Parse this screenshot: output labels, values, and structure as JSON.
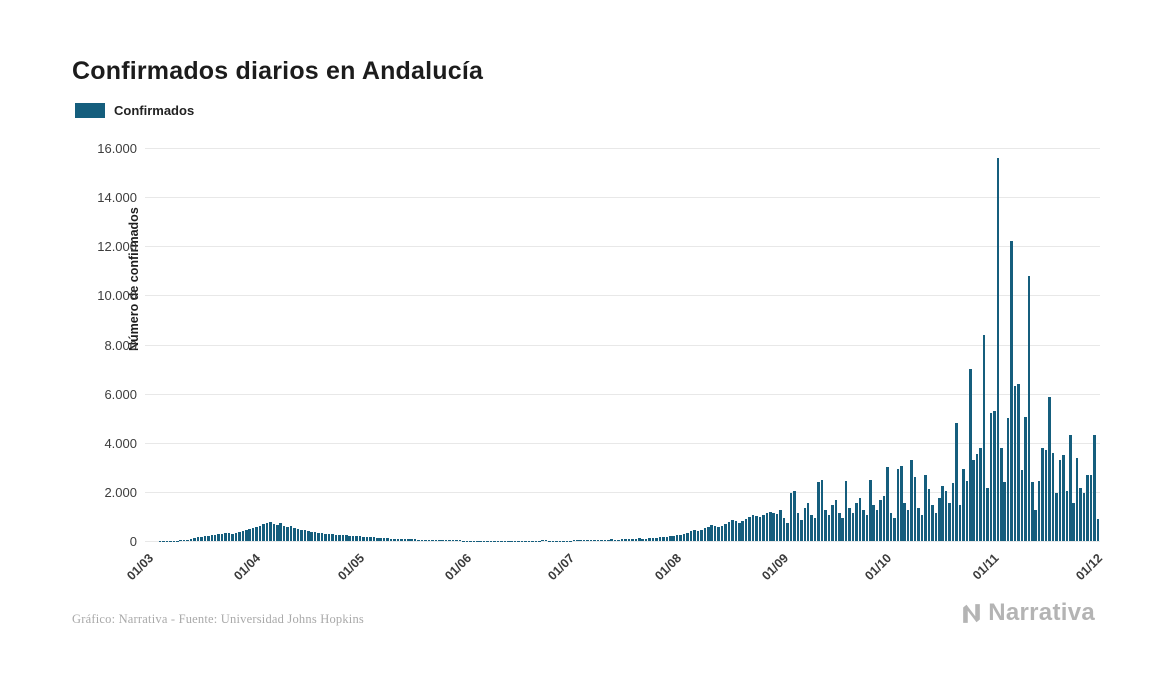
{
  "page": {
    "title": "Confirmados diarios en Andalucía",
    "footer_credit": "Gráfico: Narrativa - Fuente: Universidad Johns Hopkins",
    "brand": "Narrativa"
  },
  "legend": {
    "label": "Confirmados",
    "color": "#155E7D"
  },
  "chart_data": {
    "type": "bar",
    "title": "Confirmados diarios en Andalucía",
    "xlabel": "",
    "ylabel": "Número de confirmados",
    "ylim": [
      0,
      16000
    ],
    "grid": true,
    "legend_position": "top-left",
    "bar_color": "#155E7D",
    "y_tick_values": [
      0,
      2000,
      4000,
      6000,
      8000,
      10000,
      12000,
      14000,
      16000
    ],
    "y_tick_labels": [
      "0",
      "2.000",
      "4.000",
      "6.000",
      "8.000",
      "10.000",
      "12.000",
      "14.000",
      "16.000"
    ],
    "x_tick_labels": [
      "01/03",
      "01/04",
      "01/05",
      "01/06",
      "01/07",
      "01/08",
      "01/09",
      "01/10",
      "01/11",
      "01/12"
    ],
    "x_tick_indices": [
      0,
      31,
      61,
      92,
      122,
      153,
      184,
      214,
      245,
      275
    ],
    "frequency": "daily",
    "start_label": "01/03",
    "series": [
      {
        "name": "Confirmados",
        "values": [
          0,
          0,
          0,
          0,
          2,
          4,
          6,
          8,
          12,
          18,
          25,
          40,
          60,
          90,
          120,
          150,
          170,
          190,
          210,
          230,
          250,
          270,
          290,
          310,
          330,
          300,
          340,
          380,
          420,
          460,
          500,
          520,
          560,
          620,
          680,
          740,
          780,
          700,
          650,
          720,
          600,
          560,
          620,
          540,
          500,
          460,
          430,
          400,
          380,
          360,
          340,
          310,
          290,
          300,
          280,
          260,
          250,
          240,
          230,
          220,
          210,
          200,
          190,
          180,
          170,
          160,
          150,
          140,
          130,
          120,
          110,
          100,
          95,
          90,
          85,
          80,
          75,
          70,
          65,
          60,
          55,
          50,
          48,
          45,
          42,
          40,
          38,
          35,
          32,
          30,
          28,
          25,
          20,
          18,
          15,
          12,
          10,
          12,
          15,
          10,
          8,
          10,
          12,
          15,
          18,
          20,
          15,
          12,
          10,
          8,
          10,
          12,
          15,
          18,
          20,
          22,
          25,
          20,
          18,
          15,
          12,
          10,
          15,
          18,
          22,
          26,
          30,
          35,
          30,
          28,
          34,
          40,
          46,
          52,
          58,
          64,
          58,
          52,
          62,
          72,
          82,
          92,
          102,
          112,
          100,
          95,
          112,
          124,
          136,
          148,
          160,
          172,
          184,
          200,
          230,
          260,
          300,
          340,
          390,
          440,
          410,
          460,
          520,
          580,
          640,
          600,
          560,
          620,
          700,
          770,
          850,
          810,
          750,
          830,
          910,
          990,
          1070,
          1030,
          970,
          1050,
          1130,
          1200,
          1150,
          1100,
          1250,
          950,
          750,
          1950,
          2050,
          1150,
          850,
          1350,
          1550,
          1050,
          950,
          2400,
          2500,
          1250,
          1050,
          1450,
          1650,
          1150,
          950,
          2450,
          1350,
          1150,
          1550,
          1750,
          1250,
          1050,
          2500,
          1450,
          1250,
          1650,
          1850,
          3000,
          1150,
          950,
          2950,
          3050,
          1550,
          1250,
          3300,
          2600,
          1350,
          1050,
          2700,
          2100,
          1450,
          1150,
          1750,
          2250,
          2050,
          1550,
          2350,
          4800,
          1450,
          2950,
          2450,
          7000,
          3300,
          3550,
          3800,
          8400,
          2150,
          5200,
          5300,
          15600,
          3800,
          2400,
          5000,
          12200,
          6300,
          6400,
          2900,
          5050,
          10800,
          2400,
          1250,
          2450,
          3800,
          3700,
          5850,
          3600,
          1950,
          3300,
          3500,
          2050,
          4300,
          1550,
          3400,
          2150,
          1950,
          2700,
          2700,
          4300,
          900
        ]
      }
    ]
  }
}
